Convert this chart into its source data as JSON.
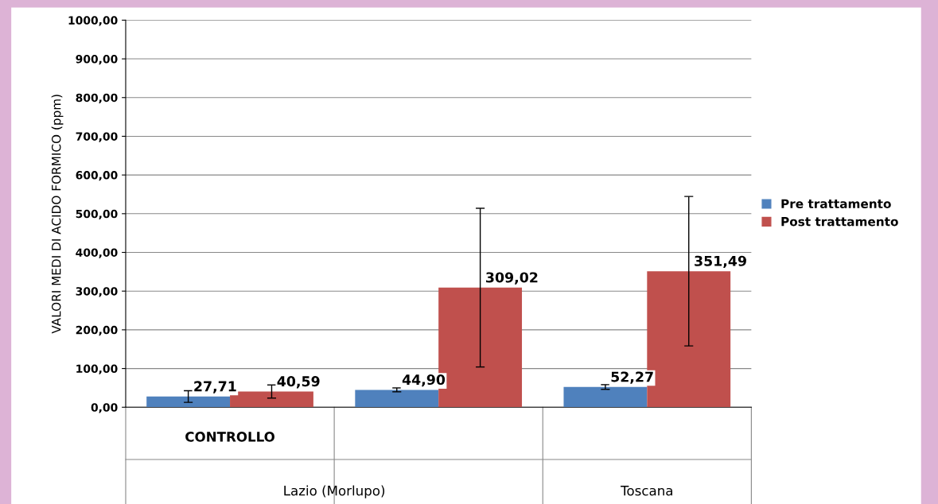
{
  "chart_data": {
    "type": "bar",
    "ylabel": "VALORI MEDI DI ACIDO FORMICO (ppm)",
    "categories": [
      "CONTROLLO",
      null,
      null
    ],
    "series": [
      {
        "name": "Pre trattamento",
        "color": "#4f81bd",
        "values": [
          27.71,
          44.9,
          52.27
        ],
        "errors": [
          15,
          5,
          6
        ],
        "value_labels": [
          "27,71",
          "44,90",
          "52,27"
        ]
      },
      {
        "name": "Post trattamento",
        "color": "#c0504d",
        "values": [
          40.59,
          309.02,
          351.49
        ],
        "errors": [
          17,
          205,
          193
        ],
        "value_labels": [
          "40,59",
          "309,02",
          "351,49"
        ]
      }
    ],
    "ylim": [
      0,
      1000
    ],
    "yticks": [
      {
        "value": 0,
        "label": "0,00"
      },
      {
        "value": 100,
        "label": "100,00"
      },
      {
        "value": 200,
        "label": "200,00"
      },
      {
        "value": 300,
        "label": "300,00"
      },
      {
        "value": 400,
        "label": "400,00"
      },
      {
        "value": 500,
        "label": "500,00"
      },
      {
        "value": 600,
        "label": "600,00"
      },
      {
        "value": 700,
        "label": "700,00"
      },
      {
        "value": 800,
        "label": "800,00"
      },
      {
        "value": 900,
        "label": "900,00"
      },
      {
        "value": 1000,
        "label": "1000,00"
      }
    ],
    "annotations": [
      "Lazio (Morlupo)",
      "Toscana"
    ],
    "grid": "y",
    "legend": "right"
  }
}
